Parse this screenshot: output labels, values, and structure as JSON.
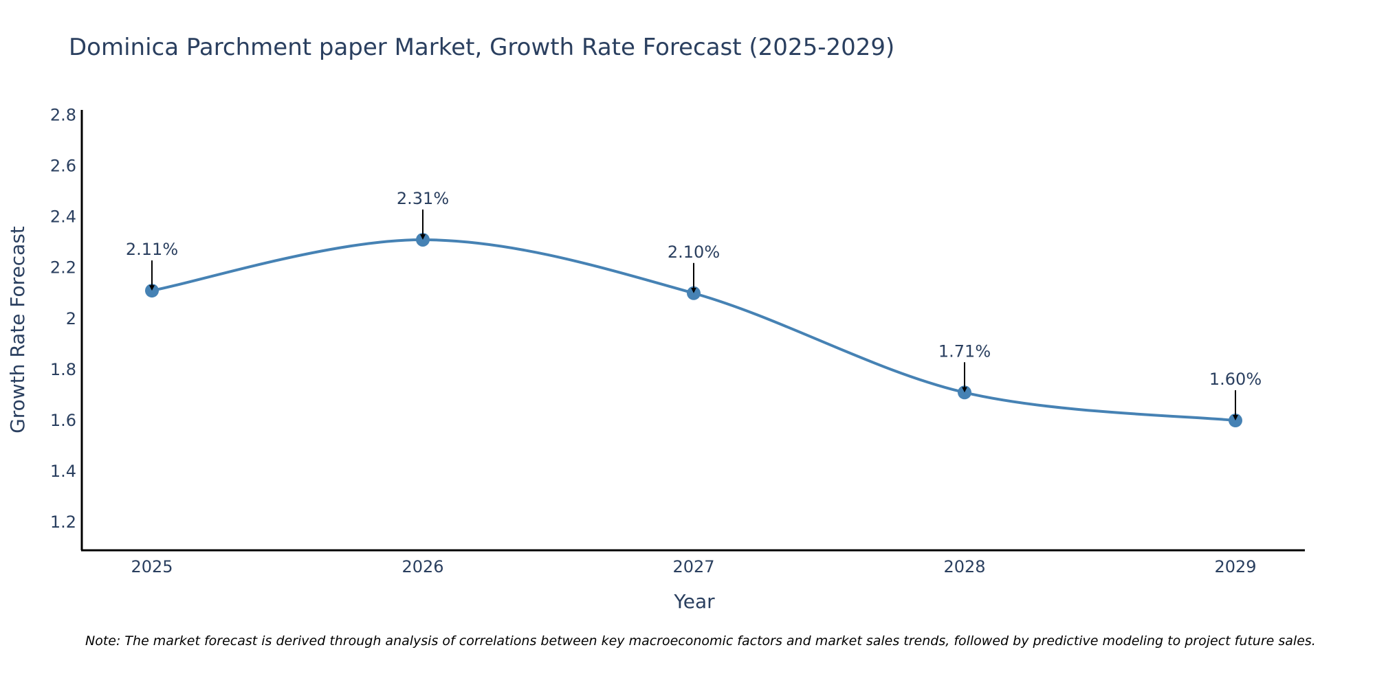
{
  "chart_data": {
    "type": "line",
    "title": "Dominica Parchment paper Market, Growth Rate Forecast (2025-2029)",
    "xlabel": "Year",
    "ylabel": "Growth Rate Forecast",
    "categories": [
      "2025",
      "2026",
      "2027",
      "2028",
      "2029"
    ],
    "values": [
      2.11,
      2.31,
      2.1,
      1.71,
      1.6
    ],
    "data_labels": [
      "2.11%",
      "2.31%",
      "2.10%",
      "1.71%",
      "1.60%"
    ],
    "ylim": [
      1.09,
      2.82
    ],
    "yticks": [
      1.2,
      1.4,
      1.6,
      1.8,
      2,
      2.2,
      2.4,
      2.6,
      2.8
    ],
    "ytick_labels": [
      "1.2",
      "1.4",
      "1.6",
      "1.8",
      "2",
      "2.2",
      "2.4",
      "2.6",
      "2.8"
    ],
    "line_shape": "spline",
    "grid": false,
    "legend": "none",
    "line_color": "#4682b4",
    "marker_color": "#4682b4",
    "arrow_color": "#000000",
    "note": "Note: The market forecast is derived through analysis of correlations between key macroeconomic factors and market sales trends, followed by predictive modeling to project future sales."
  }
}
